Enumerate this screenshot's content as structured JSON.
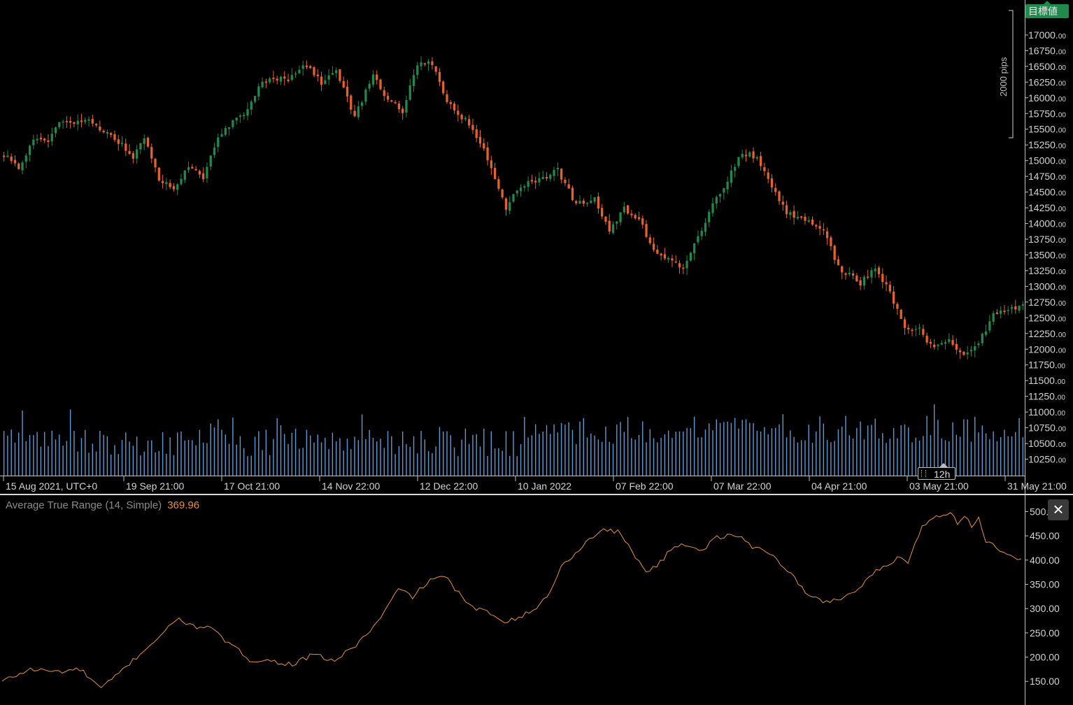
{
  "colors": {
    "background": "#000000",
    "bull": "#1f8a4c",
    "bear": "#e8612c",
    "volume": "#5b9bd5",
    "atr_line": "#e8912f",
    "axis_text": "#d2d2d2",
    "separator": "#bfbfbf"
  },
  "badges": {
    "target": "目標値",
    "timeframe": "12h",
    "pips": "2000 pips"
  },
  "atr": {
    "name": "Average True Range (14, Simple)",
    "value": "369.96",
    "close_icon": "close-icon"
  },
  "chart_data": [
    {
      "type": "candlestick",
      "name": "price",
      "ylim": [
        10100,
        17400
      ],
      "y_ticks": [
        {
          "value": 17000,
          "int": "17000.",
          "dec": "00"
        },
        {
          "value": 16750,
          "int": "16750.",
          "dec": "00"
        },
        {
          "value": 16500,
          "int": "16500.",
          "dec": "00"
        },
        {
          "value": 16250,
          "int": "16250.",
          "dec": "00"
        },
        {
          "value": 16000,
          "int": "16000.",
          "dec": "00"
        },
        {
          "value": 15750,
          "int": "15750.",
          "dec": "00"
        },
        {
          "value": 15500,
          "int": "15500.",
          "dec": "00"
        },
        {
          "value": 15250,
          "int": "15250.",
          "dec": "00"
        },
        {
          "value": 15000,
          "int": "15000.",
          "dec": "00"
        },
        {
          "value": 14750,
          "int": "14750.",
          "dec": "00"
        },
        {
          "value": 14500,
          "int": "14500.",
          "dec": "00"
        },
        {
          "value": 14250,
          "int": "14250.",
          "dec": "00"
        },
        {
          "value": 14000,
          "int": "14000.",
          "dec": "00"
        },
        {
          "value": 13750,
          "int": "13750.",
          "dec": "00"
        },
        {
          "value": 13500,
          "int": "13500.",
          "dec": "00"
        },
        {
          "value": 13250,
          "int": "13250.",
          "dec": "00"
        },
        {
          "value": 13000,
          "int": "13000.",
          "dec": "00"
        },
        {
          "value": 12750,
          "int": "12750.",
          "dec": "00"
        },
        {
          "value": 12500,
          "int": "12500.",
          "dec": "00"
        },
        {
          "value": 12250,
          "int": "12250.",
          "dec": "00"
        },
        {
          "value": 12000,
          "int": "12000.",
          "dec": "00"
        },
        {
          "value": 11750,
          "int": "11750.",
          "dec": "00"
        },
        {
          "value": 11500,
          "int": "11500.",
          "dec": "00"
        },
        {
          "value": 11250,
          "int": "11250.",
          "dec": "00"
        },
        {
          "value": 11000,
          "int": "11000.",
          "dec": "00"
        },
        {
          "value": 10750,
          "int": "10750.",
          "dec": "00"
        },
        {
          "value": 10500,
          "int": "10500.",
          "dec": "00"
        },
        {
          "value": 10250,
          "int": "10250.",
          "dec": "00"
        }
      ],
      "x_ticks": [
        "15 Aug 2021, UTC+0",
        "19 Sep 21:00",
        "17 Oct 21:00",
        "14 Nov 22:00",
        "12 Dec 22:00",
        "10 Jan 2022",
        "07 Feb 22:00",
        "07 Mar 22:00",
        "04 Apr 21:00",
        "03 May 21:00",
        "31 May 21:00"
      ],
      "anchors": [
        [
          0,
          15100
        ],
        [
          4,
          14850
        ],
        [
          8,
          15350
        ],
        [
          12,
          15350
        ],
        [
          16,
          15650
        ],
        [
          22,
          15650
        ],
        [
          28,
          15450
        ],
        [
          32,
          15250
        ],
        [
          35,
          15050
        ],
        [
          38,
          15350
        ],
        [
          42,
          14700
        ],
        [
          46,
          14550
        ],
        [
          50,
          14900
        ],
        [
          54,
          14700
        ],
        [
          58,
          15400
        ],
        [
          62,
          15600
        ],
        [
          66,
          15800
        ],
        [
          70,
          16250
        ],
        [
          76,
          16300
        ],
        [
          82,
          16550
        ],
        [
          86,
          16250
        ],
        [
          90,
          16400
        ],
        [
          95,
          15700
        ],
        [
          100,
          16350
        ],
        [
          104,
          15950
        ],
        [
          108,
          15800
        ],
        [
          112,
          16550
        ],
        [
          116,
          16550
        ],
        [
          120,
          15950
        ],
        [
          124,
          15700
        ],
        [
          128,
          15400
        ],
        [
          132,
          14900
        ],
        [
          136,
          14250
        ],
        [
          140,
          14600
        ],
        [
          146,
          14700
        ],
        [
          150,
          14850
        ],
        [
          155,
          14300
        ],
        [
          160,
          14400
        ],
        [
          164,
          13900
        ],
        [
          168,
          14250
        ],
        [
          172,
          14050
        ],
        [
          176,
          13600
        ],
        [
          180,
          13450
        ],
        [
          184,
          13300
        ],
        [
          188,
          13800
        ],
        [
          192,
          14300
        ],
        [
          196,
          14700
        ],
        [
          200,
          15150
        ],
        [
          204,
          15050
        ],
        [
          208,
          14600
        ],
        [
          212,
          14150
        ],
        [
          216,
          14100
        ],
        [
          222,
          13900
        ],
        [
          226,
          13300
        ],
        [
          232,
          13050
        ],
        [
          236,
          13300
        ],
        [
          240,
          12900
        ],
        [
          244,
          12300
        ],
        [
          248,
          12300
        ],
        [
          252,
          12000
        ],
        [
          256,
          12150
        ],
        [
          260,
          11900
        ],
        [
          264,
          12100
        ],
        [
          268,
          12550
        ],
        [
          272,
          12650
        ],
        [
          276,
          12700
        ]
      ],
      "total_candles": 277,
      "volume_range": [
        0,
        3000
      ]
    },
    {
      "type": "line",
      "name": "Average True Range (14, Simple)",
      "ylim": [
        110,
        528
      ],
      "y_ticks": [
        {
          "value": 500,
          "label": "500.00"
        },
        {
          "value": 450,
          "label": "450.00"
        },
        {
          "value": 400,
          "label": "400.00"
        },
        {
          "value": 350,
          "label": "350.00"
        },
        {
          "value": 300,
          "label": "300.00"
        },
        {
          "value": 250,
          "label": "250.00"
        },
        {
          "value": 200,
          "label": "200.00"
        },
        {
          "value": 150,
          "label": "150.00"
        }
      ],
      "anchors": [
        [
          0,
          150
        ],
        [
          8,
          175
        ],
        [
          16,
          170
        ],
        [
          22,
          175
        ],
        [
          28,
          135
        ],
        [
          32,
          160
        ],
        [
          38,
          200
        ],
        [
          44,
          240
        ],
        [
          50,
          280
        ],
        [
          54,
          262
        ],
        [
          58,
          265
        ],
        [
          62,
          240
        ],
        [
          70,
          195
        ],
        [
          76,
          192
        ],
        [
          82,
          185
        ],
        [
          88,
          205
        ],
        [
          94,
          192
        ],
        [
          100,
          225
        ],
        [
          106,
          270
        ],
        [
          112,
          340
        ],
        [
          116,
          325
        ],
        [
          122,
          365
        ],
        [
          126,
          360
        ],
        [
          132,
          305
        ],
        [
          138,
          290
        ],
        [
          142,
          275
        ],
        [
          146,
          282
        ],
        [
          150,
          295
        ],
        [
          154,
          325
        ],
        [
          158,
          385
        ],
        [
          164,
          430
        ],
        [
          170,
          465
        ],
        [
          174,
          458
        ],
        [
          178,
          420
        ],
        [
          182,
          375
        ],
        [
          186,
          395
        ],
        [
          190,
          430
        ],
        [
          194,
          432
        ],
        [
          198,
          420
        ],
        [
          202,
          448
        ],
        [
          208,
          450
        ],
        [
          212,
          428
        ],
        [
          216,
          420
        ],
        [
          222,
          380
        ],
        [
          228,
          325
        ],
        [
          232,
          315
        ],
        [
          236,
          318
        ],
        [
          242,
          340
        ],
        [
          246,
          372
        ],
        [
          250,
          388
        ],
        [
          254,
          410
        ],
        [
          256,
          395
        ],
        [
          260,
          470
        ],
        [
          264,
          492
        ],
        [
          268,
          498
        ],
        [
          270,
          478
        ],
        [
          272,
          490
        ],
        [
          274,
          470
        ],
        [
          276,
          488
        ],
        [
          278,
          440
        ],
        [
          282,
          420
        ],
        [
          286,
          402
        ],
        [
          288,
          398
        ]
      ],
      "total_points": 289
    }
  ]
}
